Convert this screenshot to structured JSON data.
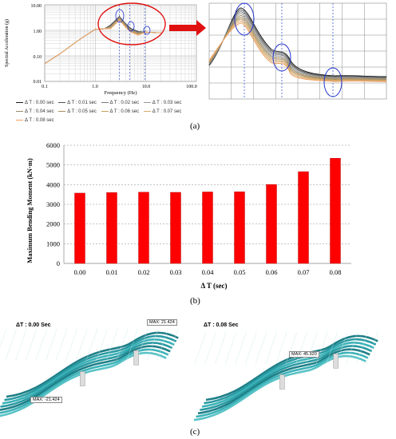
{
  "panel_a": {
    "label": "(a)",
    "ylabel": "Spectral Acceleration (g)",
    "xlabel": "Frequency (Hz)",
    "yticks": [
      "10.00",
      "1.00",
      "0.10",
      "0.01"
    ],
    "xticks": [
      "0.1",
      "1.0",
      "10.0",
      "100.0"
    ],
    "legend": [
      "Δ T : 0.00 sec",
      "Δ T : 0.01 sec",
      "Δ T : 0.02 sec",
      "Δ T : 0.03 sec",
      "Δ T : 0.04 sec",
      "Δ T : 0.05 sec",
      "Δ T : 0.06 sec",
      "Δ T : 0.07 sec",
      "Δ T : 0.08 sec"
    ],
    "legend_colors": [
      "#1a1a1a",
      "#555555",
      "#777777",
      "#999999",
      "#9b8a6a",
      "#a68d5c",
      "#c7a060",
      "#d9aa70",
      "#f0a060"
    ],
    "accent": "#e01010"
  },
  "panel_b": {
    "label": "(b)"
  },
  "panel_c": {
    "label": "(c)",
    "left_title": "ΔT : 0.00 Sec",
    "right_title": "ΔT : 0.08 Sec",
    "left_max": "MAX: 21.424",
    "left_min": "MAX: -21.424",
    "right_max": "MAX: 45.920"
  },
  "chart_data": [
    {
      "type": "line",
      "title": "",
      "xlabel": "Frequency (Hz)",
      "ylabel": "Spectral Acceleration (g)",
      "xscale": "log",
      "yscale": "log",
      "xlim": [
        0.1,
        100
      ],
      "ylim": [
        0.01,
        10
      ],
      "series": [
        {
          "name": "Δ T : 0.00 sec",
          "x": [
            0.1,
            0.2,
            0.5,
            1.0,
            1.5,
            2.0,
            3.0,
            4.0,
            5.0,
            7.0,
            10.0,
            20.0
          ],
          "y": [
            0.05,
            0.12,
            0.45,
            1.1,
            1.15,
            1.6,
            3.5,
            1.8,
            1.2,
            0.9,
            0.85,
            0.8
          ]
        },
        {
          "name": "Δ T : 0.08 sec",
          "x": [
            0.1,
            0.2,
            0.5,
            1.0,
            1.5,
            2.0,
            3.0,
            4.0,
            5.0,
            7.0,
            10.0,
            20.0
          ],
          "y": [
            0.05,
            0.12,
            0.45,
            1.1,
            1.15,
            1.5,
            2.6,
            1.5,
            1.0,
            0.85,
            0.8,
            0.78
          ]
        }
      ]
    },
    {
      "type": "bar",
      "title": "",
      "xlabel": "Δ T (sec)",
      "ylabel": "Maximum Bending Moment (kN·m)",
      "categories": [
        "0.00",
        "0.01",
        "0.02",
        "0.03",
        "0.04",
        "0.05",
        "0.06",
        "0.07",
        "0.08"
      ],
      "values": [
        3570,
        3600,
        3620,
        3610,
        3630,
        3640,
        4010,
        4660,
        5340
      ],
      "ylim": [
        0,
        6000
      ],
      "yticks": [
        "0",
        "1000",
        "2000",
        "3000",
        "4000",
        "5000",
        "6000"
      ],
      "color": "#ff0000",
      "grid": true
    }
  ]
}
